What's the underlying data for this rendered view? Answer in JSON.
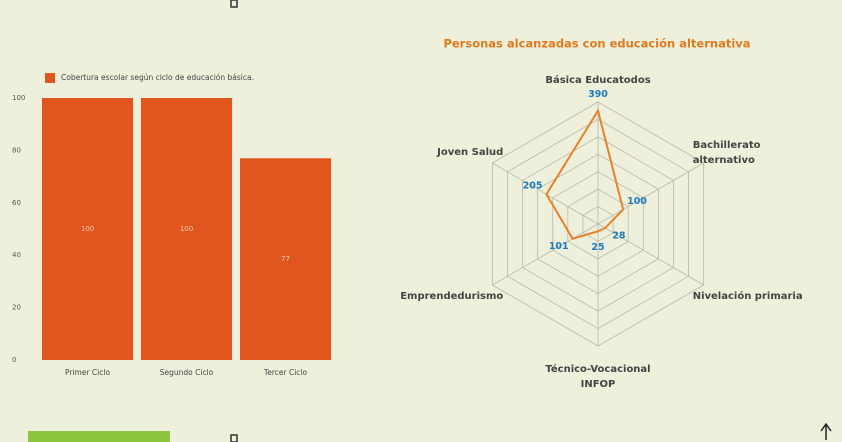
{
  "chart_data": [
    {
      "type": "bar",
      "series": [
        {
          "name": "Cobertura escolar según ciclo de educación básica.",
          "color": "#e0561e",
          "values": [
            100,
            100,
            77
          ]
        }
      ],
      "categories": [
        "Primer Ciclo",
        "Segundo Ciclo",
        "Tercer Ciclo"
      ],
      "ylim": [
        0,
        100
      ],
      "yticks": [
        0,
        20,
        40,
        60,
        80,
        100
      ]
    },
    {
      "type": "radar",
      "title": "Personas alcanzadas con educación alternativa",
      "categories": [
        "Básica Educatodos",
        "Bachillerato\nalternativo",
        "Nivelación primaria",
        "Técnico-Vocacional\nINFOP",
        "Emprendedurismo",
        "Joven Salud"
      ],
      "values": [
        390,
        100,
        28,
        25,
        101,
        205
      ],
      "color": "#e8822a",
      "rlim": [
        0,
        420
      ],
      "rticks": [
        60,
        120,
        180,
        240,
        300,
        360,
        420
      ]
    }
  ]
}
